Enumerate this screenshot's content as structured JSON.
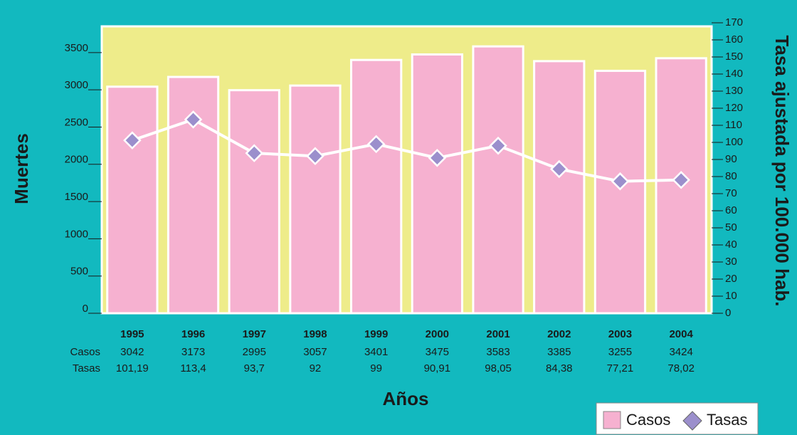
{
  "chart_data": {
    "type": "bar",
    "x_label": "Años",
    "y_label": "Muertes",
    "y2_label": "Tasa ajustada por 100.000 hab.",
    "categories": [
      "1995",
      "1996",
      "1997",
      "1998",
      "1999",
      "2000",
      "2001",
      "2002",
      "2003",
      "2004"
    ],
    "series": [
      {
        "name": "Casos",
        "type": "bar",
        "color": "#f6b1d0",
        "values": [
          3042,
          3173,
          2995,
          3057,
          3401,
          3475,
          3583,
          3385,
          3255,
          3424
        ]
      },
      {
        "name": "Tasas",
        "type": "line",
        "axis": "y2",
        "color": "#9b8fcc",
        "values": [
          101.19,
          113.4,
          93.7,
          92,
          99,
          90.91,
          98.05,
          84.38,
          77.21,
          78.02
        ],
        "value_labels": [
          "101,19",
          "113,4",
          "93,7",
          "92",
          "99",
          "90,91",
          "98,05",
          "84,38",
          "77,21",
          "78,02"
        ]
      }
    ],
    "ylim": [
      0,
      3900
    ],
    "yticks": [
      0,
      500,
      1000,
      1500,
      2000,
      2500,
      3000,
      3500
    ],
    "y2lim": [
      0,
      170
    ],
    "y2ticks": [
      0,
      10,
      20,
      30,
      40,
      50,
      60,
      70,
      80,
      90,
      100,
      110,
      120,
      130,
      140,
      150,
      160,
      170
    ],
    "plot_background": "#eeec8a"
  }
}
